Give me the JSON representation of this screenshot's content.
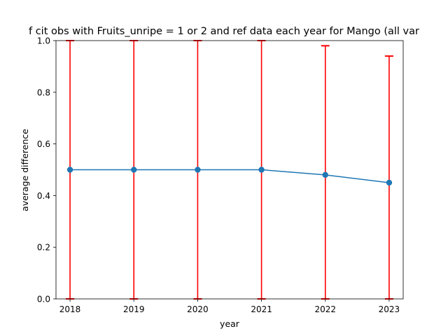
{
  "chart_data": {
    "type": "line",
    "title": "f cit obs with Fruits_unripe = 1 or 2 and ref data each year for Mango (all var",
    "xlabel": "year",
    "ylabel": "average difference",
    "x": [
      2018,
      2019,
      2020,
      2021,
      2022,
      2023
    ],
    "xticks": [
      "2018",
      "2019",
      "2020",
      "2021",
      "2022",
      "2023"
    ],
    "ylim": [
      0.0,
      1.0
    ],
    "yticks": [
      "0.0",
      "0.2",
      "0.4",
      "0.6",
      "0.8",
      "1.0"
    ],
    "grid": false,
    "series": [
      {
        "values": [
          0.5,
          0.5,
          0.5,
          0.5,
          0.48,
          0.45
        ],
        "error_low": [
          0.0,
          0.0,
          0.0,
          0.0,
          0.0,
          0.0
        ],
        "error_high": [
          1.0,
          1.0,
          1.0,
          1.0,
          0.98,
          0.94
        ],
        "color": "#1f77b4",
        "error_color": "#ff0000"
      }
    ]
  }
}
